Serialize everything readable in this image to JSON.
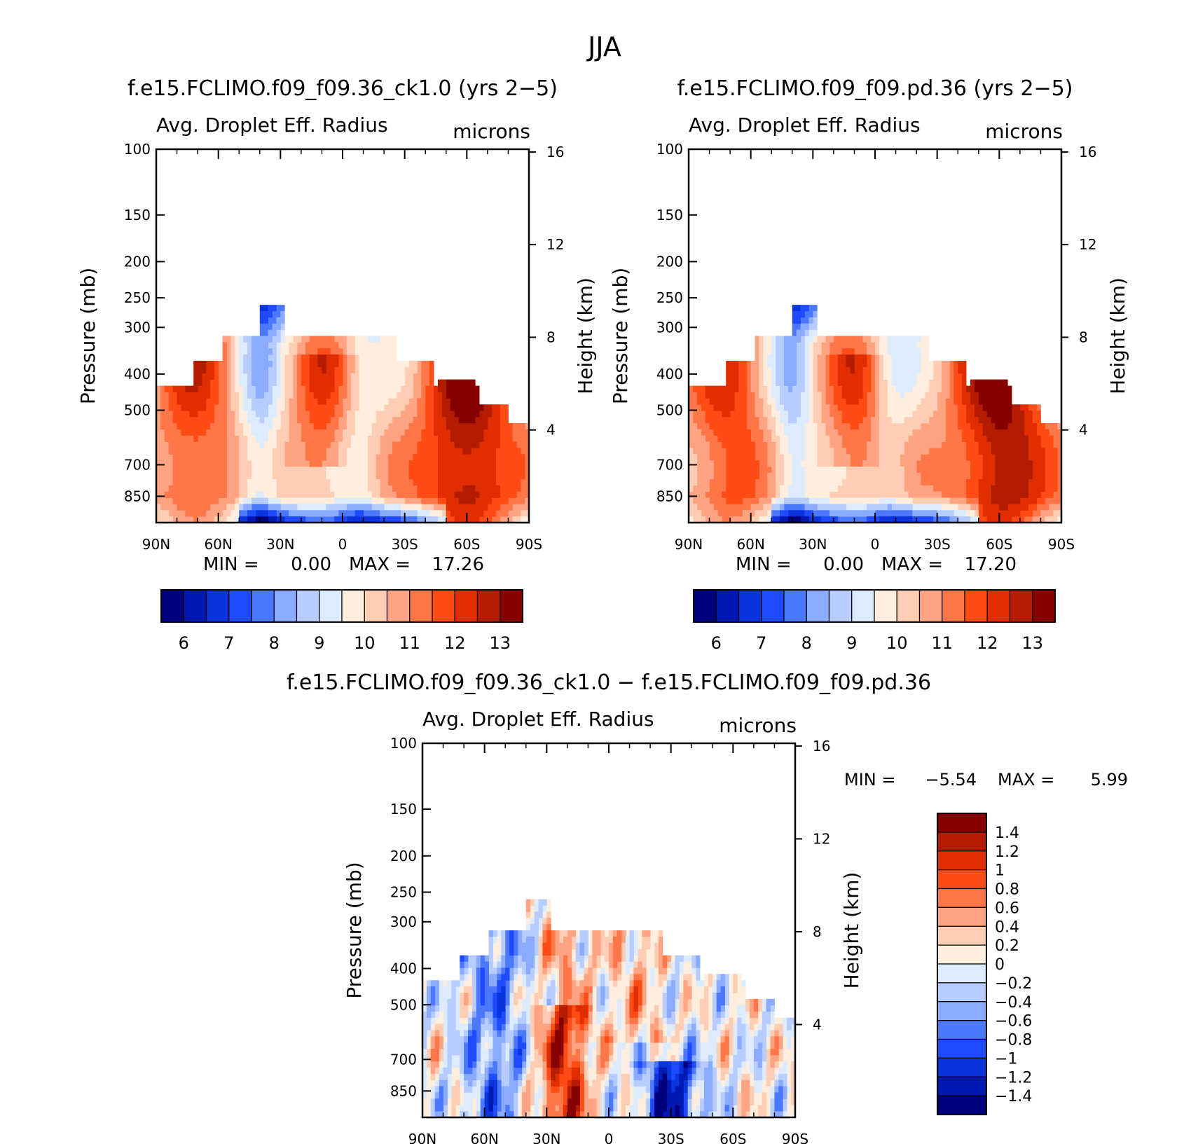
{
  "page_title": "JJA",
  "colors": {
    "abs_palette": [
      "#00007d",
      "#0019b3",
      "#0a35dc",
      "#1e4bff",
      "#4b78ff",
      "#8aabff",
      "#b7cdff",
      "#dcebff",
      "#ffeedd",
      "#ffcdb4",
      "#ffa382",
      "#ff7648",
      "#ff4b14",
      "#e12e00",
      "#b41c00",
      "#870000"
    ],
    "diff_palette": [
      "#00007d",
      "#0019b3",
      "#0a35dc",
      "#1e4bff",
      "#4b78ff",
      "#8aabff",
      "#b7cdff",
      "#dcebff",
      "#ffeedd",
      "#ffcdb4",
      "#ffa382",
      "#ff7648",
      "#ff4b14",
      "#e12e00",
      "#b41c00",
      "#870000"
    ]
  },
  "chart_data": [
    {
      "type": "heatmap",
      "title": "f.e15.FCLIMO.f09_f09.36_ck1.0 (yrs 2−5)",
      "subtitle": "Avg. Droplet Eff. Radius",
      "units": "microns",
      "ylabel": "Pressure (mb)",
      "y2label": "Height (km)",
      "x_ticks": [
        "90N",
        "60N",
        "30N",
        "0",
        "30S",
        "60S",
        "90S"
      ],
      "x_range": [
        90,
        -90
      ],
      "y_ticks": [
        100,
        150,
        200,
        250,
        300,
        400,
        500,
        700,
        850
      ],
      "y_range": [
        100,
        1000
      ],
      "y_scale": "log",
      "y2_ticks": [
        16,
        12,
        8,
        4
      ],
      "min_label": "MIN =",
      "min_value": "0.00",
      "max_label": "MAX =",
      "max_value": "17.26",
      "legend_labels": [
        "6",
        "7",
        "8",
        "9",
        "10",
        "11",
        "12",
        "13"
      ],
      "legend_placement": "bottom",
      "grid": false
    },
    {
      "type": "heatmap",
      "title": "f.e15.FCLIMO.f09_f09.pd.36 (yrs 2−5)",
      "subtitle": "Avg. Droplet Eff. Radius",
      "units": "microns",
      "ylabel": "Pressure (mb)",
      "y2label": "Height (km)",
      "x_ticks": [
        "90N",
        "60N",
        "30N",
        "0",
        "30S",
        "60S",
        "90S"
      ],
      "x_range": [
        90,
        -90
      ],
      "y_ticks": [
        100,
        150,
        200,
        250,
        300,
        400,
        500,
        700,
        850
      ],
      "y_range": [
        100,
        1000
      ],
      "y_scale": "log",
      "y2_ticks": [
        16,
        12,
        8,
        4
      ],
      "min_label": "MIN =",
      "min_value": "0.00",
      "max_label": "MAX =",
      "max_value": "17.20",
      "legend_labels": [
        "6",
        "7",
        "8",
        "9",
        "10",
        "11",
        "12",
        "13"
      ],
      "legend_placement": "bottom",
      "grid": false
    },
    {
      "type": "heatmap",
      "title": "f.e15.FCLIMO.f09_f09.36_ck1.0 − f.e15.FCLIMO.f09_f09.pd.36",
      "subtitle": "Avg. Droplet Eff. Radius",
      "units": "microns",
      "ylabel": "Pressure (mb)",
      "y2label": "Height (km)",
      "x_ticks": [
        "90N",
        "60N",
        "30N",
        "0",
        "30S",
        "60S",
        "90S"
      ],
      "x_range": [
        90,
        -90
      ],
      "y_ticks": [
        100,
        150,
        200,
        250,
        300,
        400,
        500,
        700,
        850
      ],
      "y_range": [
        100,
        1000
      ],
      "y_scale": "log",
      "y2_ticks": [
        16,
        12,
        8,
        4
      ],
      "min_label": "MIN =",
      "min_value": "−5.54",
      "max_label": "MAX =",
      "max_value": "5.99",
      "legend_labels": [
        "1.4",
        "1.2",
        "1",
        "0.8",
        "0.6",
        "0.4",
        "0.2",
        "0",
        "−0.2",
        "−0.4",
        "−0.6",
        "−0.8",
        "−1",
        "−1.2",
        "−1.4"
      ],
      "legend_placement": "right",
      "grid": false
    }
  ]
}
